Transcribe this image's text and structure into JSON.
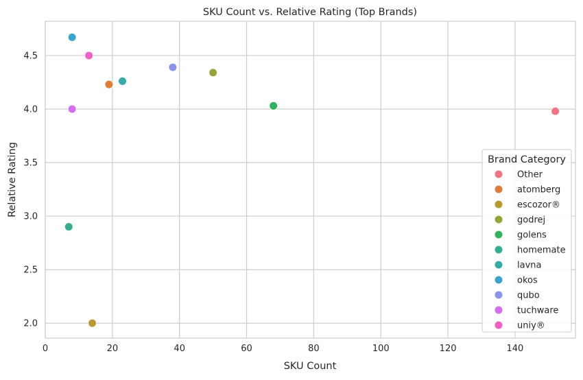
{
  "chart_data": {
    "type": "scatter",
    "title": "SKU Count vs. Relative Rating (Top Brands)",
    "xlabel": "SKU Count",
    "ylabel": "Relative Rating",
    "xlim": [
      0,
      158
    ],
    "ylim": [
      1.86,
      4.82
    ],
    "xticks": [
      0,
      20,
      40,
      60,
      80,
      100,
      120,
      140
    ],
    "yticks": [
      2.0,
      2.5,
      3.0,
      3.5,
      4.0,
      4.5
    ],
    "ytick_labels": [
      "2.0",
      "2.5",
      "3.0",
      "3.5",
      "4.0",
      "4.5"
    ],
    "grid": true,
    "legend": {
      "title": "Brand Category",
      "placement": "lower-right"
    },
    "series": [
      {
        "name": "Other",
        "color": "#f37583",
        "points": [
          [
            152,
            3.98
          ]
        ]
      },
      {
        "name": "atomberg",
        "color": "#e07b39",
        "points": [
          [
            19,
            4.23
          ]
        ]
      },
      {
        "name": "escozor®",
        "color": "#b99a32",
        "points": [
          [
            14,
            2.0
          ]
        ]
      },
      {
        "name": "godrej",
        "color": "#98a23a",
        "points": [
          [
            50,
            4.34
          ]
        ]
      },
      {
        "name": "golens",
        "color": "#33b25c",
        "points": [
          [
            68,
            4.03
          ]
        ]
      },
      {
        "name": "homemate",
        "color": "#35ae8e",
        "points": [
          [
            7,
            2.9
          ]
        ]
      },
      {
        "name": "lavna",
        "color": "#36aaa8",
        "points": [
          [
            23,
            4.26
          ]
        ]
      },
      {
        "name": "okos",
        "color": "#3aa5cc",
        "points": [
          [
            8,
            4.67
          ]
        ]
      },
      {
        "name": "qubo",
        "color": "#8c93ef",
        "points": [
          [
            38,
            4.39
          ]
        ]
      },
      {
        "name": "tuchware",
        "color": "#d46ef0",
        "points": [
          [
            8,
            4.0
          ]
        ]
      },
      {
        "name": "uniy®",
        "color": "#f260c4",
        "points": [
          [
            13,
            4.5
          ]
        ]
      }
    ]
  }
}
